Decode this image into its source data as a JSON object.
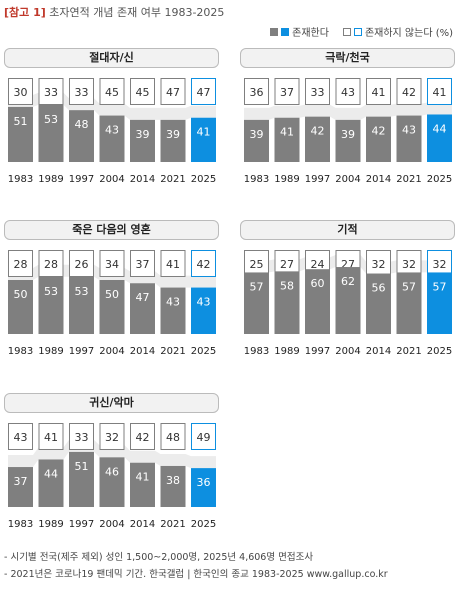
{
  "header": {
    "tag": "[참고 1]",
    "title": "초자연적 개념 존재 여부 1983-2025"
  },
  "legend": {
    "exists": "존재한다",
    "not_exists": "존재하지 않는다 (%)"
  },
  "colors": {
    "exists": "#7f7f7f",
    "exists_latest": "#0d8fe0",
    "not_exists_border": "#7f7f7f",
    "not_exists_latest_border": "#0d8fe0",
    "panel_title_bg": "#f2f2f2"
  },
  "chart_data": [
    {
      "type": "bar",
      "title": "절대자/신",
      "categories": [
        "1983",
        "1989",
        "1997",
        "2004",
        "2014",
        "2021",
        "2025"
      ],
      "series": [
        {
          "name": "존재한다",
          "values": [
            51,
            53,
            48,
            43,
            39,
            39,
            41
          ]
        },
        {
          "name": "존재하지 않는다",
          "values": [
            30,
            33,
            33,
            45,
            45,
            47,
            47
          ]
        }
      ]
    },
    {
      "type": "bar",
      "title": "극락/천국",
      "categories": [
        "1983",
        "1989",
        "1997",
        "2004",
        "2014",
        "2021",
        "2025"
      ],
      "series": [
        {
          "name": "존재한다",
          "values": [
            39,
            41,
            42,
            39,
            42,
            43,
            44
          ]
        },
        {
          "name": "존재하지 않는다",
          "values": [
            36,
            37,
            33,
            43,
            41,
            42,
            41
          ]
        }
      ]
    },
    {
      "type": "bar",
      "title": "죽은 다음의 영혼",
      "categories": [
        "1983",
        "1989",
        "1997",
        "2004",
        "2014",
        "2021",
        "2025"
      ],
      "series": [
        {
          "name": "존재한다",
          "values": [
            50,
            53,
            53,
            50,
            47,
            43,
            43
          ]
        },
        {
          "name": "존재하지 않는다",
          "values": [
            28,
            28,
            26,
            34,
            37,
            41,
            42
          ]
        }
      ]
    },
    {
      "type": "bar",
      "title": "기적",
      "categories": [
        "1983",
        "1989",
        "1997",
        "2004",
        "2014",
        "2021",
        "2025"
      ],
      "series": [
        {
          "name": "존재한다",
          "values": [
            57,
            58,
            60,
            62,
            56,
            57,
            57
          ]
        },
        {
          "name": "존재하지 않는다",
          "values": [
            25,
            27,
            24,
            27,
            32,
            32,
            32
          ]
        }
      ]
    },
    {
      "type": "bar",
      "title": "귀신/악마",
      "categories": [
        "1983",
        "1989",
        "1997",
        "2004",
        "2014",
        "2021",
        "2025"
      ],
      "series": [
        {
          "name": "존재한다",
          "values": [
            37,
            44,
            51,
            46,
            41,
            38,
            36
          ]
        },
        {
          "name": "존재하지 않는다",
          "values": [
            43,
            41,
            33,
            32,
            42,
            48,
            49
          ]
        }
      ]
    }
  ],
  "notes": [
    "- 시기별 전국(제주 제외) 성인 1,500~2,000명, 2025년 4,606명 면접조사",
    "- 2021년은 코로나19 팬데믹 기간. 한국갤럽 | 한국인의 종교 1983-2025 www.gallup.co.kr"
  ]
}
